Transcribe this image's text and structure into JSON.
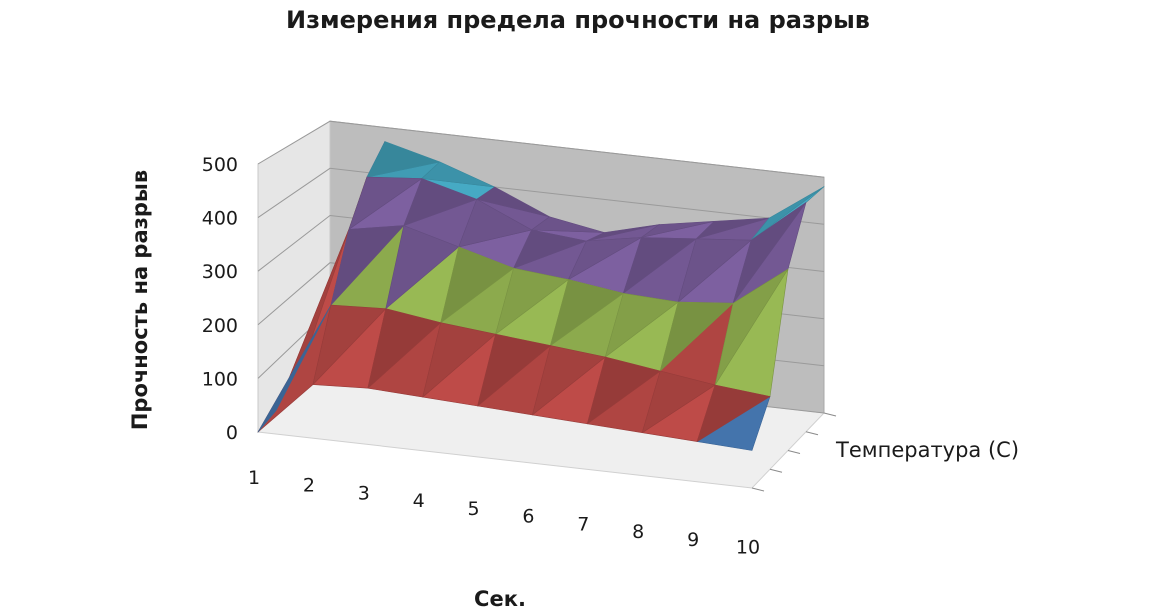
{
  "chart_data": {
    "type": "surface",
    "title": "Измерения предела прочности на разрыв",
    "xlabel": "Сек.",
    "ylabel": "Прочность на разрыв",
    "zlabel": "Температура (C)",
    "x_categories": [
      "1",
      "2",
      "3",
      "4",
      "5",
      "6",
      "7",
      "8",
      "9",
      "10"
    ],
    "ylim": [
      0,
      500
    ],
    "y_ticks": [
      "0",
      "100",
      "200",
      "300",
      "400",
      "500"
    ],
    "depth_series_count": 5,
    "surface_rows": [
      [
        0,
        100,
        105,
        100,
        95,
        90,
        85,
        80,
        75,
        70
      ],
      [
        5,
        220,
        225,
        210,
        200,
        190,
        180,
        165,
        150,
        140
      ],
      [
        10,
        340,
        360,
        330,
        300,
        290,
        275,
        270,
        280,
        360
      ],
      [
        15,
        420,
        430,
        400,
        350,
        340,
        360,
        370,
        380,
        470
      ],
      [
        20,
        470,
        440,
        400,
        350,
        330,
        360,
        380,
        400,
        480
      ]
    ],
    "color_bands": [
      {
        "range": [
          0,
          100
        ],
        "color": "#4a7ebb"
      },
      {
        "range": [
          100,
          200
        ],
        "color": "#be4b48"
      },
      {
        "range": [
          200,
          300
        ],
        "color": "#98b954"
      },
      {
        "range": [
          300,
          400
        ],
        "color": "#7d60a0"
      },
      {
        "range": [
          400,
          500
        ],
        "color": "#46aac4"
      }
    ],
    "grid": true,
    "legend": "none"
  }
}
